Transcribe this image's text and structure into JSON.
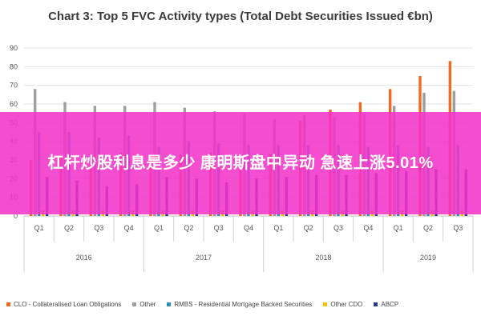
{
  "overlay_text": "杠杆炒股利息是多少 康明斯盘中异动 急速上涨5.01%",
  "chart_data": {
    "type": "bar",
    "title": "Chart 3: Top 5 FVC Activity types (Total Debt Securities Issued €bn)",
    "xlabel": "",
    "ylabel": "",
    "ylim": [
      0,
      90
    ],
    "yticks": [
      0,
      10,
      20,
      30,
      40,
      50,
      60,
      70,
      80,
      90
    ],
    "grid": true,
    "legend_position": "bottom",
    "categories": [
      "Q1",
      "Q2",
      "Q3",
      "Q4",
      "Q1",
      "Q2",
      "Q3",
      "Q4",
      "Q1",
      "Q2",
      "Q3",
      "Q4",
      "Q1",
      "Q2",
      "Q3"
    ],
    "groups": [
      {
        "label": "2016",
        "span": 4
      },
      {
        "label": "2017",
        "span": 4
      },
      {
        "label": "2018",
        "span": 4
      },
      {
        "label": "2019",
        "span": 3
      }
    ],
    "series": [
      {
        "name": "CLO - Collateralised Loan Obligations",
        "color": "#f26b21",
        "values": [
          30,
          32,
          33,
          34,
          31,
          33,
          34,
          31,
          33,
          51,
          57,
          61,
          68,
          75,
          83
        ]
      },
      {
        "name": "Other",
        "color": "#9e9e9e",
        "values": [
          68,
          61,
          59,
          59,
          61,
          58,
          56,
          55,
          52,
          54,
          53,
          55,
          59,
          66,
          67
        ]
      },
      {
        "name": "RMBS - Residential Mortgage Backed Securities",
        "color": "#2d8fbd",
        "values": [
          45,
          45,
          42,
          43,
          37,
          40,
          39,
          38,
          38,
          38,
          38,
          37,
          38,
          37,
          38
        ]
      },
      {
        "name": "Other CDO",
        "color": "#f2c300",
        "values": [
          3,
          3,
          3,
          3,
          3,
          3,
          3,
          3,
          3,
          3,
          3,
          3,
          3,
          3,
          3
        ]
      },
      {
        "name": "ABCP",
        "color": "#253a8c",
        "values": [
          21,
          19,
          16,
          17,
          21,
          20,
          18,
          20,
          21,
          22,
          22,
          23,
          24,
          25,
          25
        ]
      }
    ]
  }
}
